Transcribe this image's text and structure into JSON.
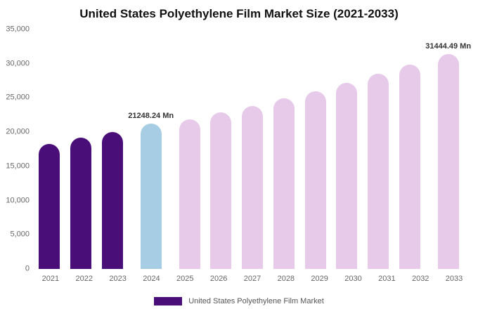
{
  "title": "United States Polyethylene Film Market Size (2021-2033)",
  "legend": {
    "label": "United States Polyethylene Film Market",
    "swatch_color": "#4a0e78"
  },
  "colors": {
    "historical_bar": "#4a0e78",
    "current_year_bar": "#a6cde3",
    "forecast_bar": "#e7c9e9",
    "axis_text": "#666666",
    "annotation_text": "#333333",
    "title_text": "#111111"
  },
  "chart_data": {
    "type": "bar",
    "title": "United States Polyethylene Film Market Size (2021-2033)",
    "xlabel": "",
    "ylabel": "",
    "ylim": [
      0,
      35000
    ],
    "grid": false,
    "legend_position": "bottom",
    "categories": [
      "2021",
      "2022",
      "2023",
      "2024",
      "2025",
      "2026",
      "2027",
      "2028",
      "2029",
      "2030",
      "2031",
      "2032",
      "2033"
    ],
    "values": [
      18300,
      19150,
      20050,
      21248.24,
      21900,
      22850,
      23850,
      24900,
      26000,
      27200,
      28500,
      29900,
      31444.49
    ],
    "bar_colors": [
      "#4a0e78",
      "#4a0e78",
      "#4a0e78",
      "#a6cde3",
      "#e7c9e9",
      "#e7c9e9",
      "#e7c9e9",
      "#e7c9e9",
      "#e7c9e9",
      "#e7c9e9",
      "#e7c9e9",
      "#e7c9e9",
      "#e7c9e9"
    ],
    "yticks": [
      {
        "value": 0,
        "label": "0"
      },
      {
        "value": 5000,
        "label": "5,000"
      },
      {
        "value": 10000,
        "label": "10,000"
      },
      {
        "value": 15000,
        "label": "15,000"
      },
      {
        "value": 20000,
        "label": "20,000"
      },
      {
        "value": 25000,
        "label": "25,000"
      },
      {
        "value": 30000,
        "label": "30,000"
      },
      {
        "value": 35000,
        "label": "35,000"
      }
    ],
    "annotations": [
      {
        "category": "2024",
        "text": "21248.24 Mn"
      },
      {
        "category": "2033",
        "text": "31444.49 Mn"
      }
    ]
  }
}
